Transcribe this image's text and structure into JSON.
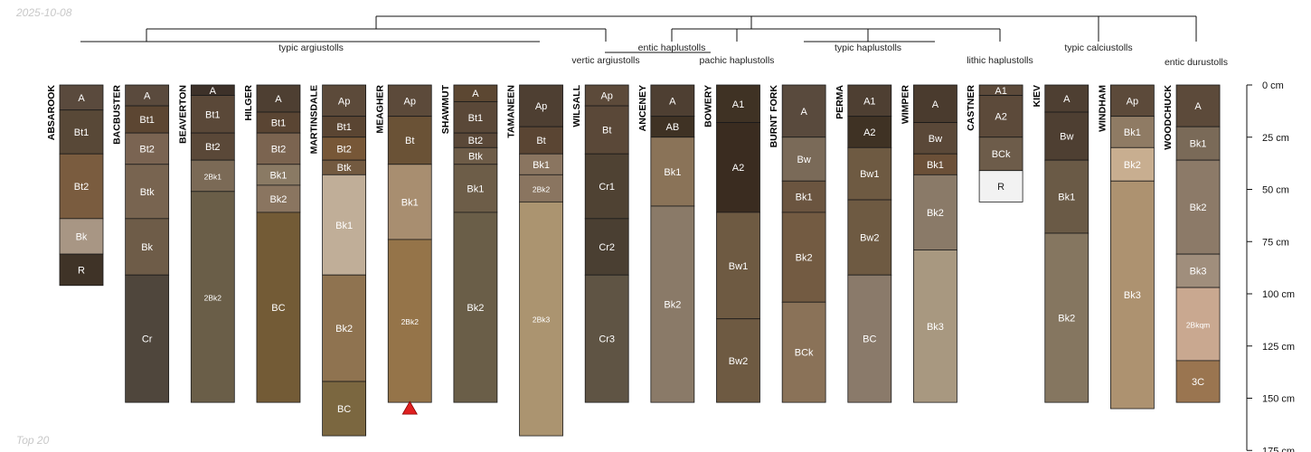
{
  "header": {
    "date": "2025-10-08"
  },
  "footer": {
    "caption": "Top 20"
  },
  "chart_data": {
    "type": "soil-profile-sketch",
    "depth_axis": {
      "unit": "cm",
      "ticks": [
        0,
        25,
        50,
        75,
        100,
        125,
        150,
        175
      ]
    },
    "tick_labels": [
      "0 cm",
      "25 cm",
      "50 cm",
      "75 cm",
      "100 cm",
      "125 cm",
      "150 cm",
      "175 cm"
    ],
    "groups": [
      {
        "label": "typic argiustolls",
        "members": [
          0,
          1,
          2,
          3,
          4,
          5,
          6,
          7
        ]
      },
      {
        "label": "vertic argiustolls",
        "members": [
          8
        ]
      },
      {
        "label": "entic haplustolls",
        "members": [
          9
        ]
      },
      {
        "label": "pachic haplustolls",
        "members": [
          10
        ]
      },
      {
        "label": "typic haplustolls",
        "members": [
          11,
          12,
          13
        ]
      },
      {
        "label": "lithic haplustolls",
        "members": [
          14
        ]
      },
      {
        "label": "typic calciustolls",
        "members": [
          15,
          16
        ]
      },
      {
        "label": "entic durustolls",
        "members": [
          17
        ]
      }
    ],
    "profiles": [
      {
        "name": "ABSAROOK",
        "horizons": [
          {
            "name": "A",
            "top": 0,
            "bottom": 12,
            "color": "#5a4a3d"
          },
          {
            "name": "Bt1",
            "top": 12,
            "bottom": 33,
            "color": "#584837"
          },
          {
            "name": "Bt2",
            "top": 33,
            "bottom": 64,
            "color": "#7a5c3f"
          },
          {
            "name": "Bk",
            "top": 64,
            "bottom": 81,
            "color": "#a89684"
          },
          {
            "name": "R",
            "top": 81,
            "bottom": 96,
            "color": "#3f3327"
          }
        ]
      },
      {
        "name": "BACBUSTER",
        "horizons": [
          {
            "name": "A",
            "top": 0,
            "bottom": 10,
            "color": "#5a4a3d"
          },
          {
            "name": "Bt1",
            "top": 10,
            "bottom": 23,
            "color": "#5c4632"
          },
          {
            "name": "Bt2",
            "top": 23,
            "bottom": 38,
            "color": "#7a6452"
          },
          {
            "name": "Btk",
            "top": 38,
            "bottom": 64,
            "color": "#786450"
          },
          {
            "name": "Bk",
            "top": 64,
            "bottom": 91,
            "color": "#6e5c48"
          },
          {
            "name": "Cr",
            "top": 91,
            "bottom": 152,
            "color": "#4f463c"
          }
        ]
      },
      {
        "name": "BEAVERTON",
        "horizons": [
          {
            "name": "A",
            "top": 0,
            "bottom": 5,
            "color": "#3d3129"
          },
          {
            "name": "Bt1",
            "top": 5,
            "bottom": 23,
            "color": "#5a4838"
          },
          {
            "name": "Bt2",
            "top": 23,
            "bottom": 36,
            "color": "#5a4838"
          },
          {
            "name": "2Bk1",
            "top": 36,
            "bottom": 51,
            "color": "#7b6a56"
          },
          {
            "name": "2Bk2",
            "top": 51,
            "bottom": 152,
            "color": "#6a5e48"
          }
        ]
      },
      {
        "name": "HILGER",
        "horizons": [
          {
            "name": "A",
            "top": 0,
            "bottom": 13,
            "color": "#4e3f32"
          },
          {
            "name": "Bt1",
            "top": 13,
            "bottom": 23,
            "color": "#5a4533"
          },
          {
            "name": "Bt2",
            "top": 23,
            "bottom": 38,
            "color": "#7b6450"
          },
          {
            "name": "Bk1",
            "top": 38,
            "bottom": 48,
            "color": "#8a7a64"
          },
          {
            "name": "Bk2",
            "top": 48,
            "bottom": 61,
            "color": "#8a7560"
          },
          {
            "name": "BC",
            "top": 61,
            "bottom": 152,
            "color": "#735b36"
          }
        ]
      },
      {
        "name": "MARTINSDALE",
        "horizons": [
          {
            "name": "Ap",
            "top": 0,
            "bottom": 15,
            "color": "#5c4a3a"
          },
          {
            "name": "Bt1",
            "top": 15,
            "bottom": 25,
            "color": "#5a4532"
          },
          {
            "name": "Bt2",
            "top": 25,
            "bottom": 36,
            "color": "#775737"
          },
          {
            "name": "Btk",
            "top": 36,
            "bottom": 43,
            "color": "#735a40"
          },
          {
            "name": "Bk1",
            "top": 43,
            "bottom": 91,
            "color": "#c0ae98"
          },
          {
            "name": "Bk2",
            "top": 91,
            "bottom": 142,
            "color": "#8f7350"
          },
          {
            "name": "BC",
            "top": 142,
            "bottom": 168,
            "color": "#7b6740"
          }
        ]
      },
      {
        "name": "MEAGHER",
        "horizons": [
          {
            "name": "Ap",
            "top": 0,
            "bottom": 15,
            "color": "#5c4a3a"
          },
          {
            "name": "Bt",
            "top": 15,
            "bottom": 38,
            "color": "#6a5236"
          },
          {
            "name": "Bk1",
            "top": 38,
            "bottom": 74,
            "color": "#a88e70"
          },
          {
            "name": "2Bk2",
            "top": 74,
            "bottom": 152,
            "color": "#957449"
          }
        ]
      },
      {
        "name": "SHAWMUT",
        "horizons": [
          {
            "name": "A",
            "top": 0,
            "bottom": 8,
            "color": "#5c4732"
          },
          {
            "name": "Bt1",
            "top": 8,
            "bottom": 23,
            "color": "#5a4838"
          },
          {
            "name": "Bt2",
            "top": 23,
            "bottom": 30,
            "color": "#5a4838"
          },
          {
            "name": "Btk",
            "top": 30,
            "bottom": 38,
            "color": "#6e5c48"
          },
          {
            "name": "Bk1",
            "top": 38,
            "bottom": 61,
            "color": "#6d5d48"
          },
          {
            "name": "Bk2",
            "top": 61,
            "bottom": 152,
            "color": "#6a5e48"
          }
        ]
      },
      {
        "name": "TAMANEEN",
        "horizons": [
          {
            "name": "Ap",
            "top": 0,
            "bottom": 20,
            "color": "#4e3f32"
          },
          {
            "name": "Bt",
            "top": 20,
            "bottom": 33,
            "color": "#5a4533"
          },
          {
            "name": "Bk1",
            "top": 33,
            "bottom": 43,
            "color": "#8a7560"
          },
          {
            "name": "2Bk2",
            "top": 43,
            "bottom": 56,
            "color": "#8a7560"
          },
          {
            "name": "2Bk3",
            "top": 56,
            "bottom": 168,
            "color": "#ab9470"
          }
        ]
      },
      {
        "name": "WILSALL",
        "horizons": [
          {
            "name": "Ap",
            "top": 0,
            "bottom": 10,
            "color": "#5c4a3a"
          },
          {
            "name": "Bt",
            "top": 10,
            "bottom": 33,
            "color": "#5a4838"
          },
          {
            "name": "Cr1",
            "top": 33,
            "bottom": 64,
            "color": "#4f4233"
          },
          {
            "name": "Cr2",
            "top": 64,
            "bottom": 91,
            "color": "#4a3f32"
          },
          {
            "name": "Cr3",
            "top": 91,
            "bottom": 152,
            "color": "#5f5444"
          }
        ]
      },
      {
        "name": "ANCENEY",
        "horizons": [
          {
            "name": "A",
            "top": 0,
            "bottom": 15,
            "color": "#4e3f32"
          },
          {
            "name": "AB",
            "top": 15,
            "bottom": 25,
            "color": "#3f3224"
          },
          {
            "name": "Bk1",
            "top": 25,
            "bottom": 58,
            "color": "#8a7358"
          },
          {
            "name": "Bk2",
            "top": 58,
            "bottom": 152,
            "color": "#8a7a68"
          }
        ]
      },
      {
        "name": "BOWERY",
        "horizons": [
          {
            "name": "A1",
            "top": 0,
            "bottom": 18,
            "color": "#3f3224"
          },
          {
            "name": "A2",
            "top": 18,
            "bottom": 61,
            "color": "#3a2c20"
          },
          {
            "name": "Bw1",
            "top": 61,
            "bottom": 112,
            "color": "#6e5a42"
          },
          {
            "name": "Bw2",
            "top": 112,
            "bottom": 152,
            "color": "#6e5a42"
          }
        ]
      },
      {
        "name": "BURNT FORK",
        "horizons": [
          {
            "name": "A",
            "top": 0,
            "bottom": 25,
            "color": "#594a3d"
          },
          {
            "name": "Bw",
            "top": 25,
            "bottom": 46,
            "color": "#7a6a58"
          },
          {
            "name": "Bk1",
            "top": 46,
            "bottom": 61,
            "color": "#6b5540"
          },
          {
            "name": "Bk2",
            "top": 61,
            "bottom": 104,
            "color": "#735b42"
          },
          {
            "name": "BCk",
            "top": 104,
            "bottom": 152,
            "color": "#8a7258"
          }
        ]
      },
      {
        "name": "PERMA",
        "horizons": [
          {
            "name": "A1",
            "top": 0,
            "bottom": 15,
            "color": "#4e3f32"
          },
          {
            "name": "A2",
            "top": 15,
            "bottom": 30,
            "color": "#3f3224"
          },
          {
            "name": "Bw1",
            "top": 30,
            "bottom": 55,
            "color": "#6e5a42"
          },
          {
            "name": "Bw2",
            "top": 55,
            "bottom": 91,
            "color": "#6e5a42"
          },
          {
            "name": "BC",
            "top": 91,
            "bottom": 152,
            "color": "#8a7a6a"
          }
        ]
      },
      {
        "name": "WIMPER",
        "horizons": [
          {
            "name": "A",
            "top": 0,
            "bottom": 18,
            "color": "#4a3b2e"
          },
          {
            "name": "Bw",
            "top": 18,
            "bottom": 33,
            "color": "#5a4838"
          },
          {
            "name": "Bk1",
            "top": 33,
            "bottom": 43,
            "color": "#6b5038"
          },
          {
            "name": "Bk2",
            "top": 43,
            "bottom": 79,
            "color": "#8a7a68"
          },
          {
            "name": "Bk3",
            "top": 79,
            "bottom": 152,
            "color": "#a89880"
          }
        ]
      },
      {
        "name": "CASTNER",
        "horizons": [
          {
            "name": "A1",
            "top": 0,
            "bottom": 5,
            "color": "#5c4a3a"
          },
          {
            "name": "A2",
            "top": 5,
            "bottom": 25,
            "color": "#5c4a3a"
          },
          {
            "name": "BCk",
            "top": 25,
            "bottom": 41,
            "color": "#6d5c4a"
          },
          {
            "name": "R",
            "top": 41,
            "bottom": 56,
            "color": "#f2f2f2"
          }
        ]
      },
      {
        "name": "KIEV",
        "horizons": [
          {
            "name": "A",
            "top": 0,
            "bottom": 13,
            "color": "#4e3f32"
          },
          {
            "name": "Bw",
            "top": 13,
            "bottom": 36,
            "color": "#4e3f32"
          },
          {
            "name": "Bk1",
            "top": 36,
            "bottom": 71,
            "color": "#6a5a46"
          },
          {
            "name": "Bk2",
            "top": 71,
            "bottom": 152,
            "color": "#857660"
          }
        ]
      },
      {
        "name": "WINDHAM",
        "horizons": [
          {
            "name": "Ap",
            "top": 0,
            "bottom": 15,
            "color": "#5c4a3a"
          },
          {
            "name": "Bk1",
            "top": 15,
            "bottom": 30,
            "color": "#8f7b64"
          },
          {
            "name": "Bk2",
            "top": 30,
            "bottom": 46,
            "color": "#c8ae90"
          },
          {
            "name": "Bk3",
            "top": 46,
            "bottom": 155,
            "color": "#ad9270"
          }
        ]
      },
      {
        "name": "WOODCHUCK",
        "horizons": [
          {
            "name": "A",
            "top": 0,
            "bottom": 20,
            "color": "#5c4a3a"
          },
          {
            "name": "Bk1",
            "top": 20,
            "bottom": 36,
            "color": "#7a6a58"
          },
          {
            "name": "Bk2",
            "top": 36,
            "bottom": 81,
            "color": "#8c7a68"
          },
          {
            "name": "Bk3",
            "top": 81,
            "bottom": 97,
            "color": "#a08e7c"
          },
          {
            "name": "2Bkqm",
            "top": 97,
            "bottom": 132,
            "color": "#c9a890"
          },
          {
            "name": "3C",
            "top": 132,
            "bottom": 152,
            "color": "#9a7550"
          }
        ]
      }
    ],
    "marker": {
      "profile": "MEAGHER",
      "depth": 152,
      "shape": "triangle",
      "color": "#e02020"
    }
  }
}
